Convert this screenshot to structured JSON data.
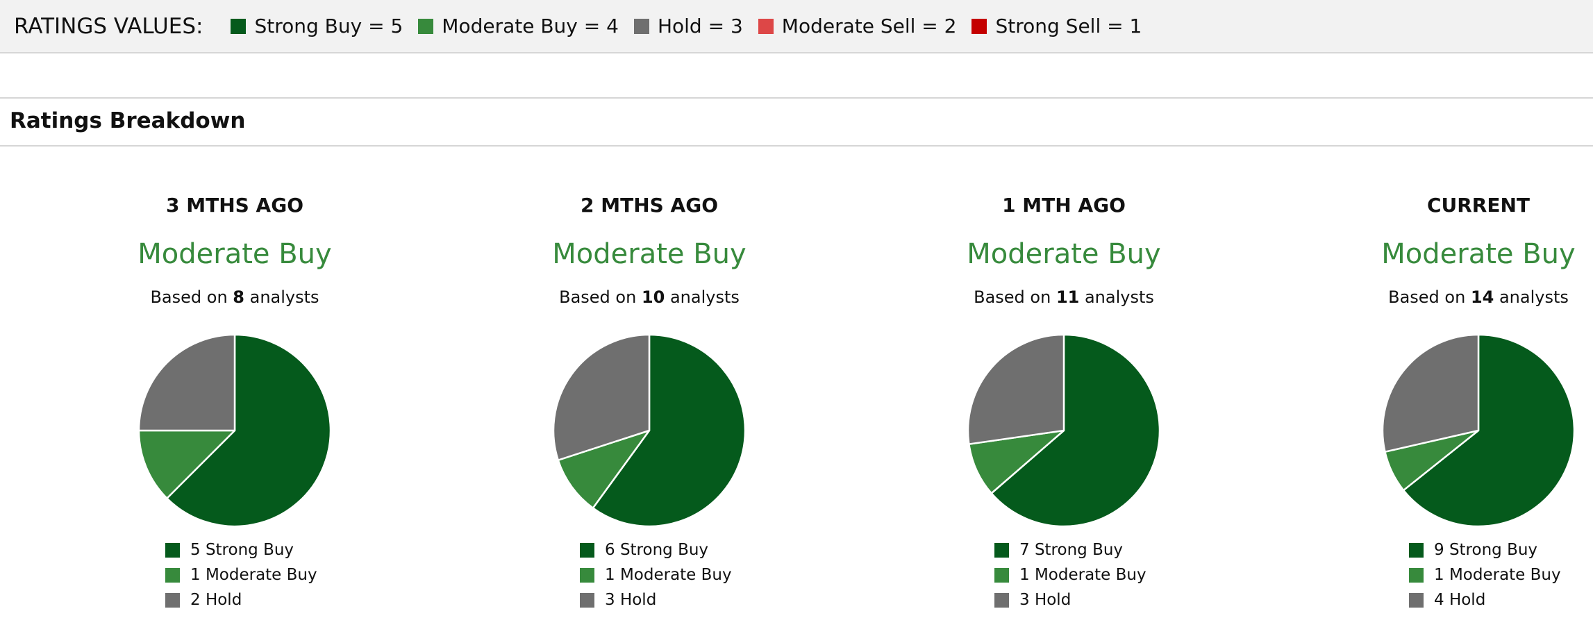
{
  "ratings_values": {
    "title": "RATINGS VALUES:",
    "items": [
      {
        "label": "Strong Buy = 5",
        "color": "#055a1c"
      },
      {
        "label": "Moderate Buy = 4",
        "color": "#378a3c"
      },
      {
        "label": "Hold = 3",
        "color": "#6f6f6f"
      },
      {
        "label": "Moderate Sell = 2",
        "color": "#dd4747"
      },
      {
        "label": "Strong Sell = 1",
        "color": "#c40000"
      }
    ]
  },
  "section": {
    "title": "Ratings Breakdown"
  },
  "based_prefix": "Based on ",
  "based_suffix": " analysts",
  "chart_data": [
    {
      "type": "pie",
      "title": "3 MTHS AGO",
      "consensus": "Moderate Buy",
      "analysts": "8",
      "categories": [
        "Strong Buy",
        "Moderate Buy",
        "Hold"
      ],
      "values": [
        5,
        1,
        2
      ],
      "colors": [
        "#055a1c",
        "#378a3c",
        "#6f6f6f"
      ],
      "legend": [
        "5 Strong Buy",
        "1 Moderate Buy",
        "2 Hold"
      ]
    },
    {
      "type": "pie",
      "title": "2 MTHS AGO",
      "consensus": "Moderate Buy",
      "analysts": "10",
      "categories": [
        "Strong Buy",
        "Moderate Buy",
        "Hold"
      ],
      "values": [
        6,
        1,
        3
      ],
      "colors": [
        "#055a1c",
        "#378a3c",
        "#6f6f6f"
      ],
      "legend": [
        "6 Strong Buy",
        "1 Moderate Buy",
        "3 Hold"
      ]
    },
    {
      "type": "pie",
      "title": "1 MTH AGO",
      "consensus": "Moderate Buy",
      "analysts": "11",
      "categories": [
        "Strong Buy",
        "Moderate Buy",
        "Hold"
      ],
      "values": [
        7,
        1,
        3
      ],
      "colors": [
        "#055a1c",
        "#378a3c",
        "#6f6f6f"
      ],
      "legend": [
        "7 Strong Buy",
        "1 Moderate Buy",
        "3 Hold"
      ]
    },
    {
      "type": "pie",
      "title": "CURRENT",
      "consensus": "Moderate Buy",
      "analysts": "14",
      "categories": [
        "Strong Buy",
        "Moderate Buy",
        "Hold"
      ],
      "values": [
        9,
        1,
        4
      ],
      "colors": [
        "#055a1c",
        "#378a3c",
        "#6f6f6f"
      ],
      "legend": [
        "9 Strong Buy",
        "1 Moderate Buy",
        "4 Hold"
      ]
    }
  ],
  "consensus_color": "#378a3c"
}
